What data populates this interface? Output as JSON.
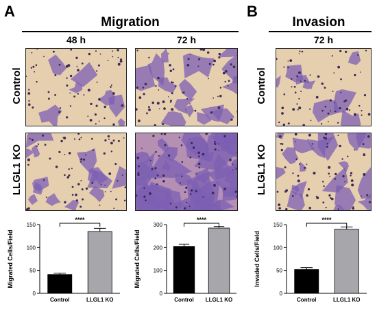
{
  "panel_a": {
    "letter": "A",
    "title": "Migration",
    "col_48h": "48 h",
    "col_72h": "72 h",
    "row_control": "Control",
    "row_ko": "LLGL1 KO"
  },
  "panel_b": {
    "letter": "B",
    "title": "Invasion",
    "col_72h": "72 h",
    "row_control": "Control",
    "row_ko": "LLGL1 KO"
  },
  "micrograph_colors": {
    "background": "#e6cfae",
    "cell": "#7c5fb3",
    "cell_dense": "#8d5cb8",
    "nucleus": "#3b2a5a"
  },
  "chart_data": [
    {
      "type": "bar",
      "categories": [
        "Control",
        "LLGL1 KO"
      ],
      "values": [
        41,
        135
      ],
      "errors": [
        3,
        7
      ],
      "colors": [
        "#000000",
        "#a6a6ab"
      ],
      "ylabel": "Migrated Cells/Field",
      "ylim": [
        0,
        150
      ],
      "yticks": [
        0,
        50,
        100,
        150
      ],
      "significance": "****"
    },
    {
      "type": "bar",
      "categories": [
        "Control",
        "LLGL1 KO"
      ],
      "values": [
        205,
        285
      ],
      "errors": [
        10,
        7
      ],
      "colors": [
        "#000000",
        "#a6a6ab"
      ],
      "ylabel": "Migrated Cells/Field",
      "ylim": [
        0,
        300
      ],
      "yticks": [
        0,
        100,
        200,
        300
      ],
      "significance": "****"
    },
    {
      "type": "bar",
      "categories": [
        "Control",
        "LLGL1 KO"
      ],
      "values": [
        52,
        140
      ],
      "errors": [
        4,
        5
      ],
      "colors": [
        "#000000",
        "#a6a6ab"
      ],
      "ylabel": "Invaded Cells/Field",
      "ylim": [
        0,
        150
      ],
      "yticks": [
        0,
        50,
        100,
        150
      ],
      "significance": "****"
    }
  ]
}
